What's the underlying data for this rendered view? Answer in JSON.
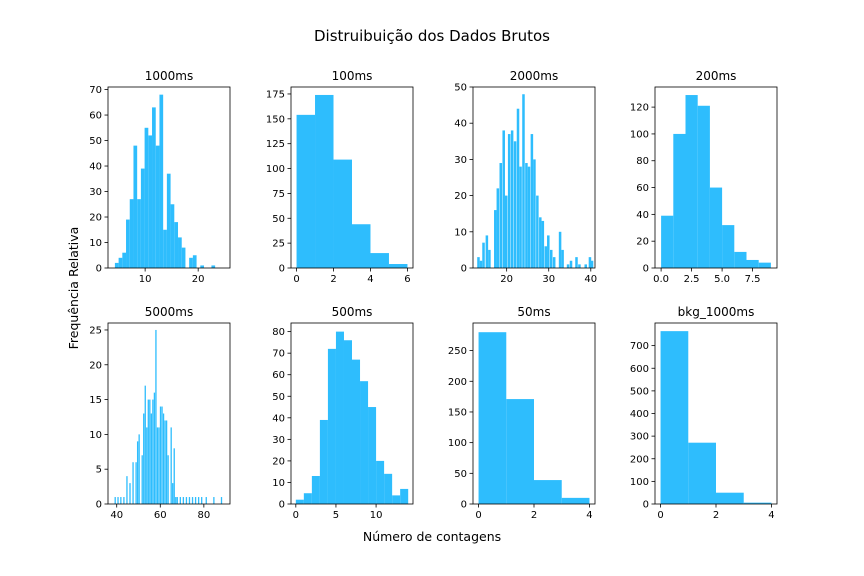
{
  "figure": {
    "suptitle": "Distruibuição dos Dados Brutos",
    "xlabel": "Número de contagens",
    "ylabel": "Frequência Relativa",
    "bar_color": "#2ebdfd"
  },
  "chart_data": [
    {
      "type": "bar",
      "title": "1000ms",
      "xlim": [
        3,
        26
      ],
      "ylim": [
        0,
        71
      ],
      "xticks": [
        10,
        20
      ],
      "yticks": [
        0,
        10,
        20,
        30,
        40,
        50,
        60,
        70
      ],
      "bars": [
        [
          4.3,
          0.7,
          2
        ],
        [
          5.0,
          0.7,
          4
        ],
        [
          5.7,
          0.7,
          6
        ],
        [
          6.4,
          0.7,
          19
        ],
        [
          7.1,
          0.7,
          27
        ],
        [
          7.8,
          0.7,
          48
        ],
        [
          8.5,
          0.7,
          27
        ],
        [
          9.2,
          0.7,
          39
        ],
        [
          9.9,
          0.7,
          55
        ],
        [
          10.6,
          0.7,
          52
        ],
        [
          11.3,
          0.7,
          63
        ],
        [
          12.0,
          0.7,
          48
        ],
        [
          12.7,
          0.7,
          68
        ],
        [
          13.4,
          0.7,
          15
        ],
        [
          14.1,
          0.7,
          37
        ],
        [
          14.8,
          0.7,
          25
        ],
        [
          15.5,
          0.7,
          18
        ],
        [
          16.2,
          0.7,
          12
        ],
        [
          16.9,
          0.7,
          8
        ],
        [
          18.3,
          0.7,
          4
        ],
        [
          19.0,
          0.7,
          5
        ],
        [
          20.4,
          0.7,
          1
        ],
        [
          22.5,
          0.7,
          1
        ]
      ]
    },
    {
      "type": "bar",
      "title": "100ms",
      "xlim": [
        -0.3,
        6.3
      ],
      "ylim": [
        0,
        182
      ],
      "xticks": [
        0,
        2,
        4,
        6
      ],
      "yticks": [
        0,
        25,
        50,
        75,
        100,
        125,
        150,
        175
      ],
      "bars": [
        [
          0,
          1,
          154
        ],
        [
          1,
          1,
          174
        ],
        [
          2,
          1,
          109
        ],
        [
          3,
          1,
          44
        ],
        [
          4,
          1,
          15
        ],
        [
          5,
          1,
          4
        ]
      ]
    },
    {
      "type": "bar",
      "title": "2000ms",
      "xlim": [
        12,
        41
      ],
      "ylim": [
        0,
        50
      ],
      "xticks": [
        20,
        30,
        40
      ],
      "yticks": [
        0,
        10,
        20,
        30,
        40,
        50
      ],
      "bars": [
        [
          13.0,
          0.6,
          3
        ],
        [
          13.6,
          0.6,
          2
        ],
        [
          14.2,
          0.6,
          7
        ],
        [
          15.0,
          0.6,
          9
        ],
        [
          15.6,
          0.6,
          5
        ],
        [
          17.0,
          0.6,
          16
        ],
        [
          17.6,
          0.6,
          22
        ],
        [
          18.3,
          0.6,
          29
        ],
        [
          19.0,
          0.6,
          38
        ],
        [
          19.6,
          0.6,
          20
        ],
        [
          20.3,
          0.6,
          37
        ],
        [
          21.0,
          0.6,
          38
        ],
        [
          21.7,
          0.6,
          35
        ],
        [
          22.4,
          0.6,
          44
        ],
        [
          23.0,
          0.6,
          28
        ],
        [
          23.7,
          0.6,
          48
        ],
        [
          24.4,
          0.6,
          29
        ],
        [
          25.0,
          0.6,
          28
        ],
        [
          25.7,
          0.6,
          37
        ],
        [
          26.3,
          0.6,
          30
        ],
        [
          27.0,
          0.6,
          20
        ],
        [
          27.7,
          0.6,
          14
        ],
        [
          28.3,
          0.6,
          13
        ],
        [
          29.0,
          0.6,
          6
        ],
        [
          29.6,
          0.6,
          9
        ],
        [
          30.3,
          0.6,
          5
        ],
        [
          31.0,
          0.6,
          3
        ],
        [
          32.4,
          0.6,
          10
        ],
        [
          33.0,
          0.6,
          5
        ],
        [
          34.3,
          0.6,
          1
        ],
        [
          35.0,
          0.6,
          2
        ],
        [
          36.3,
          0.6,
          3
        ],
        [
          37.0,
          0.6,
          1
        ],
        [
          38.5,
          0.6,
          1
        ],
        [
          39.5,
          0.6,
          3
        ],
        [
          40.0,
          0.6,
          2
        ]
      ]
    },
    {
      "type": "bar",
      "title": "200ms",
      "xlim": [
        -0.5,
        9.5
      ],
      "ylim": [
        0,
        135
      ],
      "xticks": [
        0.0,
        2.5,
        5.0,
        7.5
      ],
      "yticks": [
        0,
        20,
        40,
        60,
        80,
        100,
        120
      ],
      "yticklabels": [
        "0",
        "20",
        "40",
        "60",
        "80",
        "100",
        "120"
      ],
      "xticklabels": [
        "0.0",
        "2.5",
        "5.0",
        "7.5"
      ],
      "bars": [
        [
          0,
          1,
          39
        ],
        [
          1,
          1,
          100
        ],
        [
          2,
          1,
          129
        ],
        [
          3,
          1,
          121
        ],
        [
          4,
          1,
          60
        ],
        [
          5,
          1,
          32
        ],
        [
          6,
          1,
          12
        ],
        [
          7,
          1,
          6
        ],
        [
          8,
          1,
          4
        ]
      ]
    },
    {
      "type": "bar",
      "title": "5000ms",
      "xlim": [
        36,
        92
      ],
      "ylim": [
        0,
        26
      ],
      "xticks": [
        40,
        60,
        80
      ],
      "yticks": [
        0,
        5,
        10,
        15,
        20,
        25
      ],
      "bars": [
        [
          39,
          0.6,
          1
        ],
        [
          40.3,
          0.6,
          1
        ],
        [
          41.6,
          0.6,
          1
        ],
        [
          43,
          0.6,
          1
        ],
        [
          44.4,
          0.6,
          4
        ],
        [
          45.8,
          0.6,
          3
        ],
        [
          47.2,
          0.6,
          6
        ],
        [
          48.6,
          0.6,
          6
        ],
        [
          49.3,
          0.6,
          9
        ],
        [
          50,
          0.6,
          10
        ],
        [
          51.4,
          0.6,
          7
        ],
        [
          52.1,
          0.6,
          13
        ],
        [
          52.8,
          0.6,
          17
        ],
        [
          53.5,
          0.6,
          11
        ],
        [
          54.2,
          0.6,
          15
        ],
        [
          54.9,
          0.6,
          15
        ],
        [
          55.6,
          0.6,
          13
        ],
        [
          56.3,
          0.6,
          15
        ],
        [
          57,
          0.6,
          16
        ],
        [
          57.7,
          0.6,
          25
        ],
        [
          58.4,
          0.6,
          11
        ],
        [
          59.1,
          0.6,
          11
        ],
        [
          59.8,
          0.6,
          14
        ],
        [
          60.5,
          0.6,
          14
        ],
        [
          61.2,
          0.6,
          13
        ],
        [
          61.9,
          0.6,
          12
        ],
        [
          62.6,
          0.6,
          12
        ],
        [
          63.3,
          0.6,
          7
        ],
        [
          64.7,
          0.6,
          11
        ],
        [
          65.4,
          0.6,
          3
        ],
        [
          66.1,
          0.6,
          8
        ],
        [
          66.8,
          0.6,
          1
        ],
        [
          67.5,
          0.6,
          1
        ],
        [
          68.9,
          0.6,
          1
        ],
        [
          70.3,
          0.6,
          1
        ],
        [
          71.7,
          0.6,
          1
        ],
        [
          73.1,
          0.6,
          1
        ],
        [
          74.5,
          0.6,
          1
        ],
        [
          75.9,
          0.6,
          1
        ],
        [
          77.3,
          0.6,
          1
        ],
        [
          78.7,
          0.6,
          1
        ],
        [
          80.8,
          0.6,
          1
        ],
        [
          84.3,
          0.6,
          1
        ],
        [
          87.8,
          0.6,
          1
        ]
      ]
    },
    {
      "type": "bar",
      "title": "500ms",
      "xlim": [
        -0.6,
        14.6
      ],
      "ylim": [
        0,
        84
      ],
      "xticks": [
        0,
        5,
        10
      ],
      "yticks": [
        0,
        10,
        20,
        30,
        40,
        50,
        60,
        70,
        80
      ],
      "bars": [
        [
          0,
          1,
          2
        ],
        [
          1,
          1,
          5
        ],
        [
          2,
          1,
          13
        ],
        [
          3,
          1,
          39
        ],
        [
          4,
          1,
          72
        ],
        [
          5,
          1,
          80
        ],
        [
          6,
          1,
          76
        ],
        [
          7,
          1,
          67
        ],
        [
          8,
          1,
          57
        ],
        [
          9,
          1,
          45
        ],
        [
          10,
          1,
          20
        ],
        [
          11,
          1,
          14
        ],
        [
          12,
          1,
          4
        ],
        [
          13,
          1,
          7
        ]
      ]
    },
    {
      "type": "bar",
      "title": "50ms",
      "xlim": [
        -0.2,
        4.2
      ],
      "ylim": [
        0,
        295
      ],
      "xticks": [
        0,
        2,
        4
      ],
      "yticks": [
        0,
        50,
        100,
        150,
        200,
        250
      ],
      "bars": [
        [
          0,
          1,
          280
        ],
        [
          1,
          1,
          171
        ],
        [
          2,
          1,
          39
        ],
        [
          3,
          1,
          10
        ]
      ]
    },
    {
      "type": "bar",
      "title": "bkg_1000ms",
      "xlim": [
        -0.2,
        4.2
      ],
      "ylim": [
        0,
        800
      ],
      "xticks": [
        0,
        2,
        4
      ],
      "yticks": [
        0,
        100,
        200,
        300,
        400,
        500,
        600,
        700
      ],
      "bars": [
        [
          0,
          1,
          764
        ],
        [
          1,
          1,
          271
        ],
        [
          2,
          1,
          50
        ],
        [
          3,
          1,
          6
        ]
      ]
    }
  ]
}
